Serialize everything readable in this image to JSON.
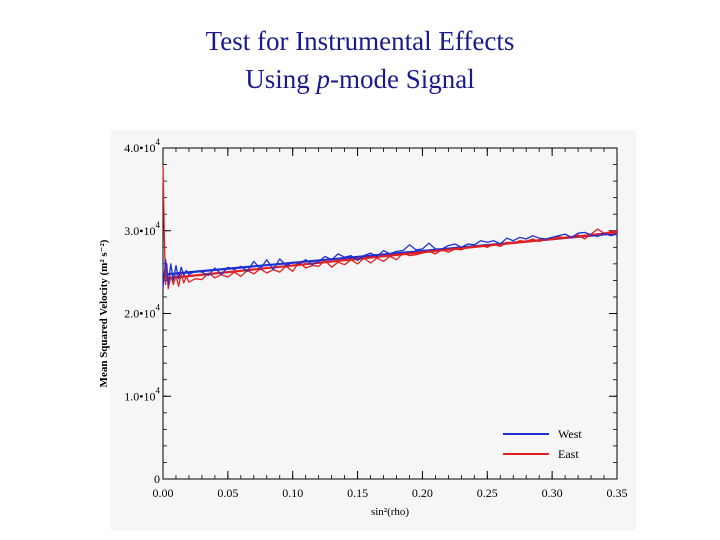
{
  "header": {
    "title_line1": "Test for Instrumental Effects",
    "title_line2_pre": "Using ",
    "title_line2_italic": "p",
    "title_line2_post": "-mode Signal"
  },
  "chart_data": {
    "type": "line",
    "xlabel": "sin²(rho)",
    "ylabel": "Mean Squared Velocity (m² s⁻²)",
    "xlim": [
      0,
      0.35
    ],
    "ylim": [
      0,
      40000
    ],
    "x_ticks": [
      0.0,
      0.05,
      0.1,
      0.15,
      0.2,
      0.25,
      0.3,
      0.35
    ],
    "x_tick_labels": [
      "0.00",
      "0.05",
      "0.10",
      "0.15",
      "0.20",
      "0.25",
      "0.30",
      "0.35"
    ],
    "y_ticks": [
      0,
      10000,
      20000,
      30000,
      40000
    ],
    "y_tick_labels": [
      {
        "mantissa": "0",
        "exp": ""
      },
      {
        "mantissa": "1.0•10",
        "exp": "4"
      },
      {
        "mantissa": "2.0•10",
        "exp": "4"
      },
      {
        "mantissa": "3.0•10",
        "exp": "4"
      },
      {
        "mantissa": "4.0•10",
        "exp": "4"
      }
    ],
    "grid": false,
    "legend_position": "bottom-right",
    "series": [
      {
        "name": "West",
        "color": "#1f2fd1",
        "x": [
          0.0,
          0.002,
          0.004,
          0.006,
          0.008,
          0.01,
          0.012,
          0.014,
          0.016,
          0.018,
          0.02,
          0.025,
          0.03,
          0.035,
          0.04,
          0.045,
          0.05,
          0.055,
          0.06,
          0.065,
          0.07,
          0.075,
          0.08,
          0.085,
          0.09,
          0.095,
          0.1,
          0.105,
          0.11,
          0.115,
          0.12,
          0.125,
          0.13,
          0.135,
          0.14,
          0.145,
          0.15,
          0.155,
          0.16,
          0.165,
          0.17,
          0.175,
          0.18,
          0.185,
          0.19,
          0.195,
          0.2,
          0.205,
          0.21,
          0.215,
          0.22,
          0.225,
          0.23,
          0.235,
          0.24,
          0.245,
          0.25,
          0.255,
          0.26,
          0.265,
          0.27,
          0.275,
          0.28,
          0.285,
          0.29,
          0.295,
          0.3,
          0.305,
          0.31,
          0.315,
          0.32,
          0.325,
          0.33,
          0.335,
          0.34,
          0.345,
          0.35
        ],
        "values": [
          23000,
          26500,
          23500,
          26000,
          24000,
          25800,
          24200,
          25600,
          24600,
          25200,
          24700,
          25100,
          25000,
          24600,
          25500,
          24700,
          25600,
          25300,
          25700,
          25100,
          26300,
          25400,
          26500,
          25300,
          26600,
          25800,
          26200,
          26000,
          26500,
          25900,
          26300,
          26900,
          26500,
          27200,
          26800,
          27000,
          26400,
          27000,
          27300,
          26900,
          27600,
          27200,
          27500,
          27600,
          28300,
          27700,
          27800,
          28500,
          27800,
          27800,
          28200,
          28400,
          28000,
          28400,
          28300,
          28800,
          28600,
          28800,
          28400,
          29100,
          28800,
          29200,
          29000,
          29400,
          29100,
          29000,
          29200,
          29400,
          29600,
          29200,
          29700,
          29800,
          29500,
          29300,
          29700,
          29400,
          29600
        ]
      },
      {
        "name": "East",
        "color": "#e02020",
        "x": [
          0.0,
          0.001,
          0.002,
          0.003,
          0.004,
          0.006,
          0.008,
          0.01,
          0.012,
          0.014,
          0.016,
          0.018,
          0.02,
          0.025,
          0.03,
          0.035,
          0.04,
          0.045,
          0.05,
          0.055,
          0.06,
          0.065,
          0.07,
          0.075,
          0.08,
          0.085,
          0.09,
          0.095,
          0.1,
          0.105,
          0.11,
          0.115,
          0.12,
          0.125,
          0.13,
          0.135,
          0.14,
          0.145,
          0.15,
          0.155,
          0.16,
          0.165,
          0.17,
          0.175,
          0.18,
          0.185,
          0.19,
          0.195,
          0.2,
          0.205,
          0.21,
          0.215,
          0.22,
          0.225,
          0.23,
          0.235,
          0.24,
          0.245,
          0.25,
          0.255,
          0.26,
          0.265,
          0.27,
          0.275,
          0.28,
          0.285,
          0.29,
          0.295,
          0.3,
          0.305,
          0.31,
          0.315,
          0.32,
          0.325,
          0.33,
          0.335,
          0.34,
          0.345,
          0.35
        ],
        "values": [
          38000,
          29500,
          23500,
          26000,
          23000,
          24500,
          23500,
          24600,
          23300,
          24800,
          23700,
          24500,
          23800,
          24200,
          24100,
          24900,
          24300,
          24700,
          24400,
          25000,
          24500,
          25200,
          24800,
          25400,
          24900,
          25300,
          25000,
          25700,
          25100,
          26200,
          25500,
          25800,
          25700,
          26400,
          25600,
          26200,
          25900,
          26500,
          26000,
          26700,
          26100,
          26700,
          26300,
          26900,
          26500,
          27300,
          27000,
          27100,
          27300,
          27500,
          27200,
          27700,
          27400,
          27800,
          27700,
          28000,
          28100,
          28200,
          28000,
          28400,
          28100,
          28600,
          28500,
          28800,
          28700,
          29000,
          28700,
          29000,
          28900,
          29300,
          29100,
          29200,
          29500,
          29000,
          29600,
          30200,
          29700,
          29900,
          30000
        ]
      }
    ],
    "fits": [
      {
        "series": "West",
        "color": "#1f2fd1",
        "x": [
          0.0,
          0.35
        ],
        "values": [
          24700,
          29700
        ]
      },
      {
        "series": "East",
        "color": "#e02020",
        "x": [
          0.0,
          0.35
        ],
        "values": [
          24200,
          29800
        ]
      }
    ]
  }
}
